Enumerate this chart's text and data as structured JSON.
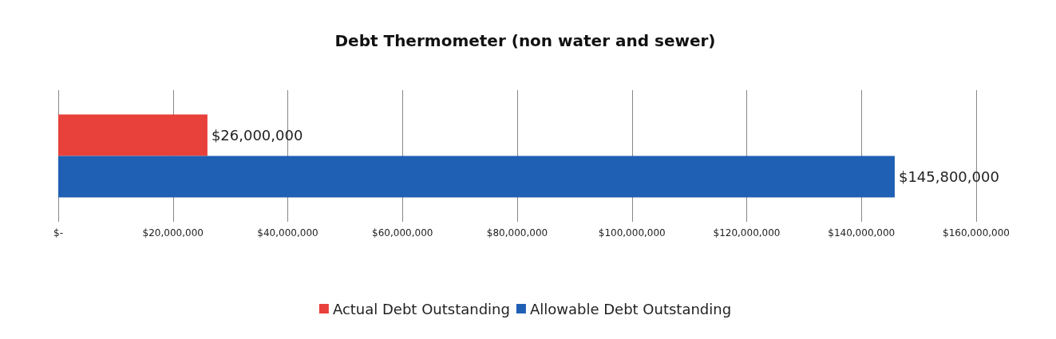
{
  "chart_data": {
    "type": "bar",
    "orientation": "horizontal",
    "title": "Debt Thermometer (non water and sewer)",
    "categories": [
      null
    ],
    "series": [
      {
        "name": "Actual Debt Outstanding",
        "color": "#e8403a",
        "values": [
          26000000
        ],
        "value_labels": [
          "$26,000,000"
        ]
      },
      {
        "name": "Allowable Debt Outstanding",
        "color": "#1f5fb4",
        "values": [
          145800000
        ],
        "value_labels": [
          "$145,800,000"
        ]
      }
    ],
    "xlim": [
      0,
      160000000
    ],
    "xticks": [
      {
        "value": 0,
        "label": "$-"
      },
      {
        "value": 20000000,
        "label": "$20,000,000"
      },
      {
        "value": 40000000,
        "label": "$40,000,000"
      },
      {
        "value": 60000000,
        "label": "$60,000,000"
      },
      {
        "value": 80000000,
        "label": "$80,000,000"
      },
      {
        "value": 100000000,
        "label": "$100,000,000"
      },
      {
        "value": 120000000,
        "label": "$120,000,000"
      },
      {
        "value": 140000000,
        "label": "$140,000,000"
      },
      {
        "value": 160000000,
        "label": "$160,000,000"
      }
    ],
    "grid": "x",
    "legend": "bottom"
  }
}
